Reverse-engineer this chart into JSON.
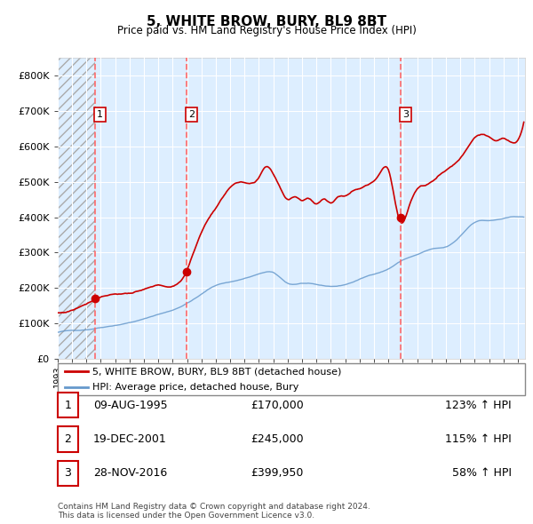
{
  "title": "5, WHITE BROW, BURY, BL9 8BT",
  "subtitle": "Price paid vs. HM Land Registry's House Price Index (HPI)",
  "ylim": [
    0,
    850000
  ],
  "yticks": [
    0,
    100000,
    200000,
    300000,
    400000,
    500000,
    600000,
    700000,
    800000
  ],
  "xlim_start": 1993.0,
  "xlim_end": 2025.5,
  "sale_times": [
    1995.583,
    2001.958,
    2016.833
  ],
  "sale_prices": [
    170000,
    245000,
    399950
  ],
  "sale_labels": [
    "1",
    "2",
    "3"
  ],
  "legend_property": "5, WHITE BROW, BURY, BL9 8BT (detached house)",
  "legend_hpi": "HPI: Average price, detached house, Bury",
  "table_rows": [
    [
      "1",
      "09-AUG-1995",
      "£170,000",
      "123% ↑ HPI"
    ],
    [
      "2",
      "19-DEC-2001",
      "£245,000",
      "115% ↑ HPI"
    ],
    [
      "3",
      "28-NOV-2016",
      "£399,950",
      "58% ↑ HPI"
    ]
  ],
  "footer": "Contains HM Land Registry data © Crown copyright and database right 2024.\nThis data is licensed under the Open Government Licence v3.0.",
  "property_line_color": "#cc0000",
  "hpi_line_color": "#6699cc",
  "sale_marker_color": "#cc0000",
  "dashed_line_color": "#ff6666",
  "bg_color": "#ddeeff",
  "grid_color": "#ffffff",
  "label_box_color": "#cc0000",
  "hpi_key_points": [
    [
      1993.0,
      75000
    ],
    [
      1994.0,
      80000
    ],
    [
      1995.0,
      83000
    ],
    [
      1996.0,
      90000
    ],
    [
      1997.0,
      97000
    ],
    [
      1998.0,
      105000
    ],
    [
      1999.0,
      115000
    ],
    [
      2000.0,
      128000
    ],
    [
      2001.0,
      140000
    ],
    [
      2002.0,
      160000
    ],
    [
      2003.0,
      185000
    ],
    [
      2004.0,
      210000
    ],
    [
      2005.0,
      220000
    ],
    [
      2006.0,
      230000
    ],
    [
      2007.0,
      242000
    ],
    [
      2008.0,
      245000
    ],
    [
      2009.0,
      215000
    ],
    [
      2010.0,
      215000
    ],
    [
      2011.0,
      210000
    ],
    [
      2012.0,
      205000
    ],
    [
      2013.0,
      210000
    ],
    [
      2014.0,
      225000
    ],
    [
      2015.0,
      240000
    ],
    [
      2016.0,
      255000
    ],
    [
      2017.0,
      280000
    ],
    [
      2018.0,
      295000
    ],
    [
      2019.0,
      310000
    ],
    [
      2020.0,
      315000
    ],
    [
      2021.0,
      345000
    ],
    [
      2022.0,
      385000
    ],
    [
      2023.0,
      390000
    ],
    [
      2024.0,
      395000
    ],
    [
      2025.0,
      400000
    ]
  ],
  "prop_key_points": [
    [
      1993.0,
      130000
    ],
    [
      1994.0,
      138000
    ],
    [
      1995.5,
      170000
    ],
    [
      1996.0,
      180000
    ],
    [
      1997.0,
      190000
    ],
    [
      1998.0,
      193000
    ],
    [
      1999.0,
      200000
    ],
    [
      2000.0,
      210000
    ],
    [
      2001.9,
      245000
    ],
    [
      2002.5,
      310000
    ],
    [
      2003.5,
      400000
    ],
    [
      2004.5,
      460000
    ],
    [
      2005.0,
      490000
    ],
    [
      2006.0,
      500000
    ],
    [
      2007.0,
      510000
    ],
    [
      2007.5,
      540000
    ],
    [
      2008.0,
      520000
    ],
    [
      2008.5,
      480000
    ],
    [
      2009.0,
      450000
    ],
    [
      2009.5,
      460000
    ],
    [
      2010.0,
      450000
    ],
    [
      2010.5,
      455000
    ],
    [
      2011.0,
      440000
    ],
    [
      2011.5,
      455000
    ],
    [
      2012.0,
      445000
    ],
    [
      2012.5,
      460000
    ],
    [
      2013.0,
      465000
    ],
    [
      2013.5,
      480000
    ],
    [
      2014.0,
      490000
    ],
    [
      2014.5,
      500000
    ],
    [
      2015.0,
      510000
    ],
    [
      2015.5,
      540000
    ],
    [
      2016.0,
      545000
    ],
    [
      2016.83,
      399950
    ],
    [
      2017.5,
      450000
    ],
    [
      2018.0,
      490000
    ],
    [
      2018.5,
      500000
    ],
    [
      2019.0,
      510000
    ],
    [
      2019.5,
      530000
    ],
    [
      2020.0,
      545000
    ],
    [
      2020.5,
      560000
    ],
    [
      2021.0,
      580000
    ],
    [
      2021.5,
      610000
    ],
    [
      2022.0,
      640000
    ],
    [
      2022.5,
      650000
    ],
    [
      2023.0,
      640000
    ],
    [
      2023.5,
      630000
    ],
    [
      2024.0,
      635000
    ],
    [
      2024.5,
      625000
    ],
    [
      2025.0,
      630000
    ]
  ]
}
